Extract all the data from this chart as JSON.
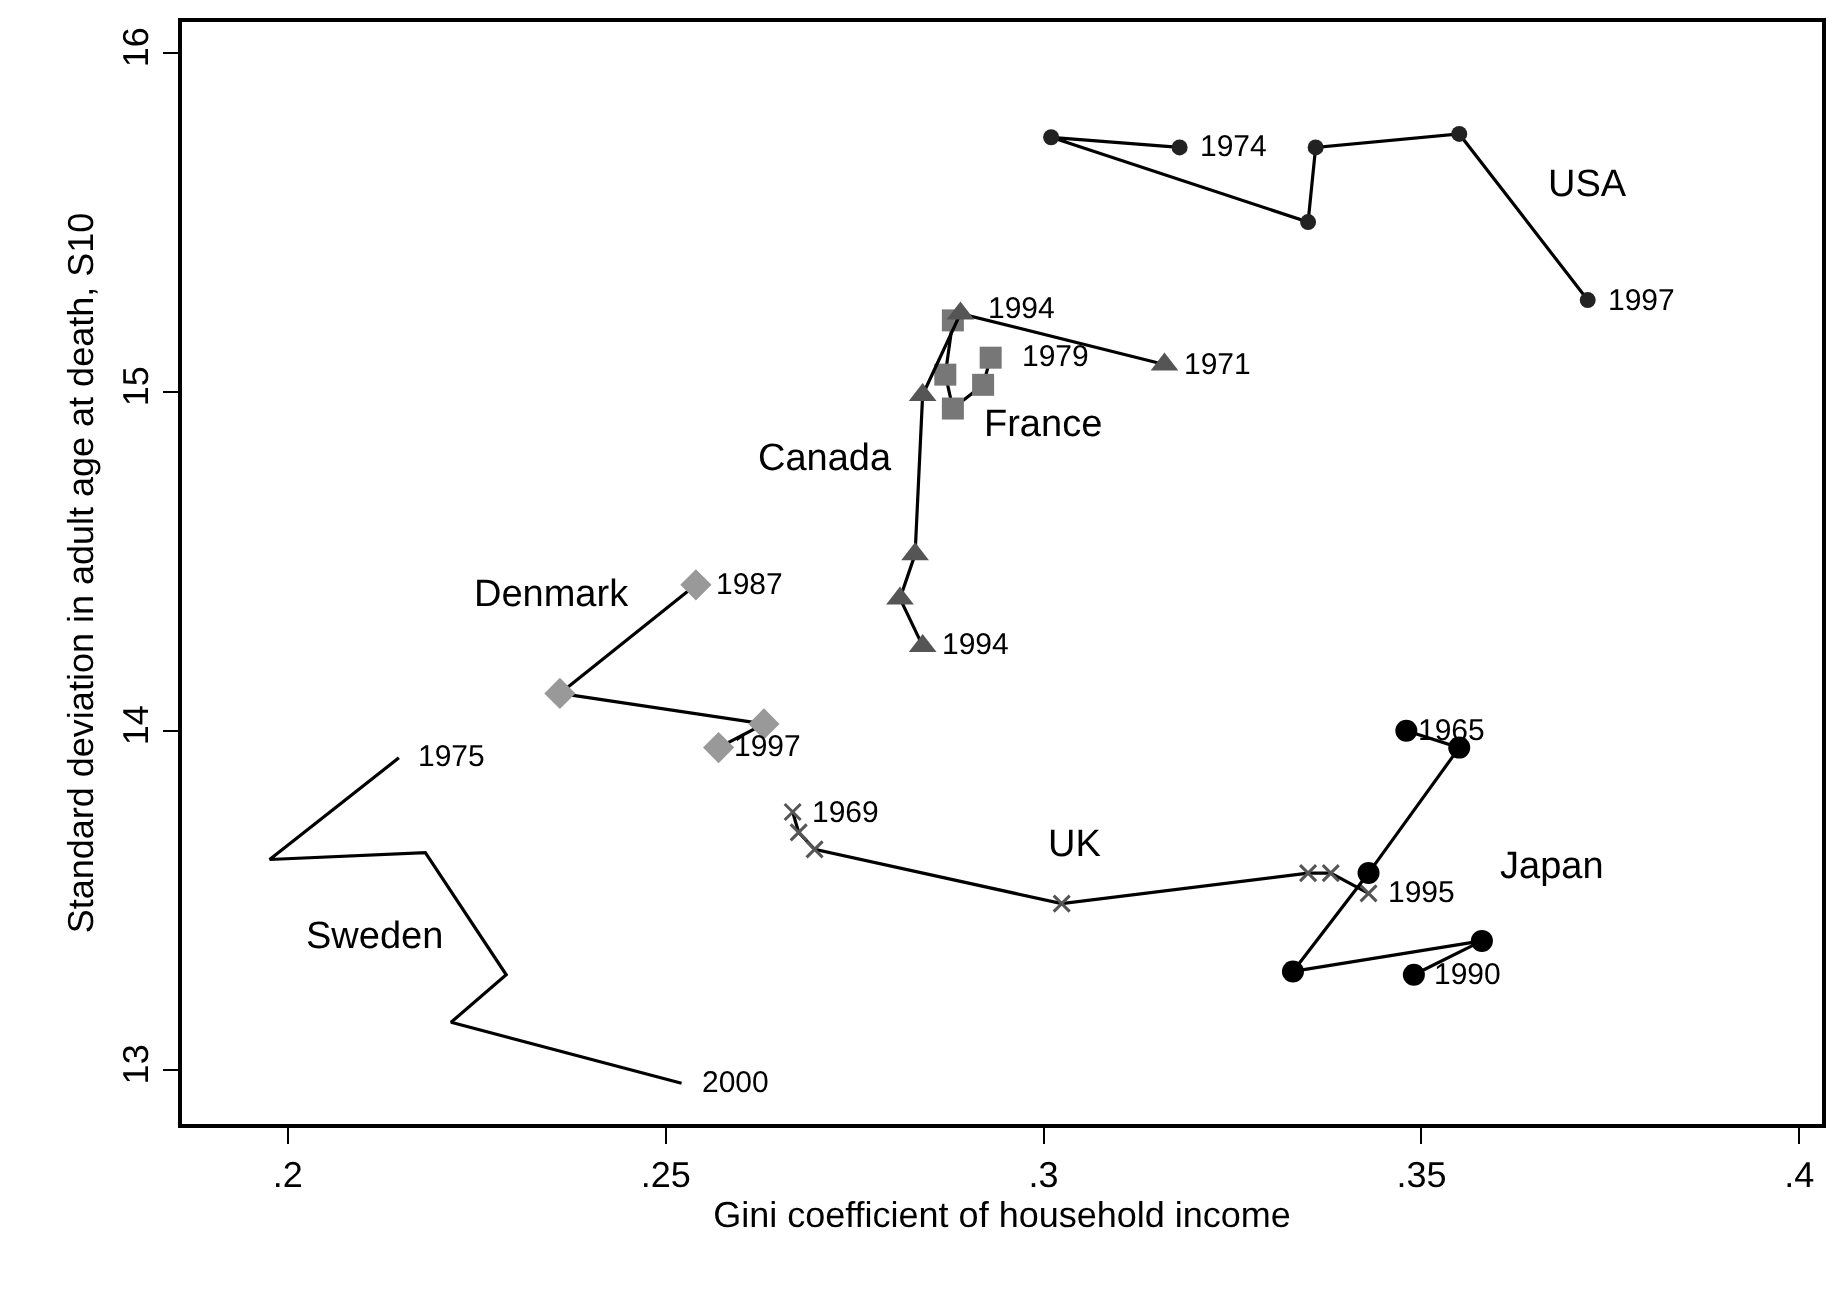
{
  "chart_data": {
    "type": "line",
    "xlabel": "Gini coefficient of household income",
    "ylabel": "Standard deviation in adult age at death, S10",
    "xlim": [
      0.186,
      0.403
    ],
    "ylim": [
      12.84,
      16.09
    ],
    "xticks": [
      {
        "value": 0.2,
        "label": ".2"
      },
      {
        "value": 0.25,
        "label": ".25"
      },
      {
        "value": 0.3,
        "label": ".3"
      },
      {
        "value": 0.35,
        "label": ".35"
      },
      {
        "value": 0.4,
        "label": ".4"
      }
    ],
    "yticks": [
      13,
      14,
      15,
      16
    ],
    "grid": false,
    "legend": false,
    "series": [
      {
        "name": "USA",
        "marker": "circle",
        "color": "#222222",
        "x": [
          0.318,
          0.301,
          0.335,
          0.336,
          0.355,
          0.372
        ],
        "values": [
          15.72,
          15.75,
          15.5,
          15.72,
          15.76,
          15.27
        ]
      },
      {
        "name": "Canada",
        "marker": "triangle",
        "color": "#555555",
        "x": [
          0.316,
          0.289,
          0.284,
          0.283,
          0.281,
          0.284
        ],
        "values": [
          15.08,
          15.23,
          14.99,
          14.52,
          14.39,
          14.25
        ]
      },
      {
        "name": "France",
        "marker": "square",
        "color": "#777777",
        "x": [
          0.293,
          0.292,
          0.288,
          0.287,
          0.288
        ],
        "values": [
          15.1,
          15.02,
          14.95,
          15.05,
          15.21
        ]
      },
      {
        "name": "Denmark",
        "marker": "diamond",
        "color": "#999999",
        "x": [
          0.254,
          0.236,
          0.263,
          0.257
        ],
        "values": [
          14.43,
          14.11,
          14.02,
          13.95
        ]
      },
      {
        "name": "Sweden",
        "marker": "none",
        "color": "#000000",
        "x": [
          0.2147,
          0.1976,
          0.2182,
          0.2289,
          0.2216,
          0.2521
        ],
        "values": [
          13.92,
          13.62,
          13.64,
          13.28,
          13.14,
          12.96
        ]
      },
      {
        "name": "UK",
        "marker": "cross",
        "color": "#555555",
        "x": [
          0.2668,
          0.2676,
          0.2697,
          0.3024,
          0.335,
          0.338,
          0.343
        ],
        "values": [
          13.76,
          13.7,
          13.65,
          13.49,
          13.58,
          13.58,
          13.52
        ]
      },
      {
        "name": "Japan",
        "marker": "circle",
        "color": "#000000",
        "x": [
          0.348,
          0.355,
          0.343,
          0.333,
          0.358,
          0.349
        ],
        "values": [
          14.0,
          13.95,
          13.58,
          13.29,
          13.38,
          13.28
        ]
      }
    ],
    "annotations": [
      {
        "text": "1974",
        "x": 0.318,
        "y": 15.72
      },
      {
        "text": "1997",
        "x": 0.372,
        "y": 15.27
      },
      {
        "text": "1971",
        "x": 0.316,
        "y": 15.08
      },
      {
        "text": "1994",
        "x": 0.284,
        "y": 14.25
      },
      {
        "text": "1979",
        "x": 0.293,
        "y": 15.1
      },
      {
        "text": "1994",
        "x": 0.288,
        "y": 15.21
      },
      {
        "text": "1987",
        "x": 0.254,
        "y": 14.43
      },
      {
        "text": "1997",
        "x": 0.257,
        "y": 13.95
      },
      {
        "text": "1975",
        "x": 0.2147,
        "y": 13.92
      },
      {
        "text": "2000",
        "x": 0.2521,
        "y": 12.96
      },
      {
        "text": "1969",
        "x": 0.2668,
        "y": 13.76
      },
      {
        "text": "1995",
        "x": 0.343,
        "y": 13.52
      },
      {
        "text": "1965",
        "x": 0.348,
        "y": 14.0
      },
      {
        "text": "1990",
        "x": 0.349,
        "y": 13.28
      }
    ]
  }
}
